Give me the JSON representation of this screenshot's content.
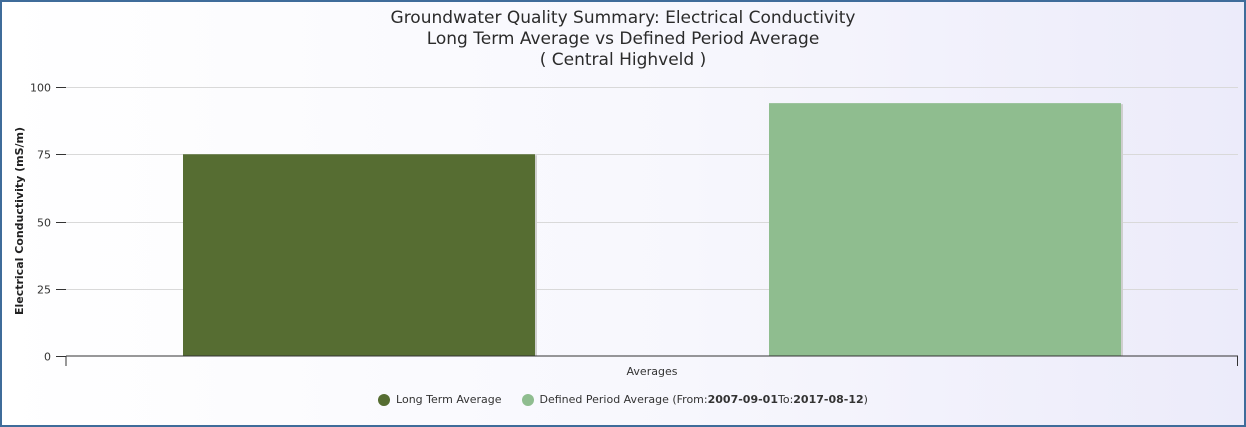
{
  "chart_data": {
    "type": "bar",
    "title": "Groundwater Quality Summary: Electrical Conductivity",
    "subtitle": "Long Term Average vs Defined Period Average",
    "region": "( Central Highveld )",
    "xlabel": "Averages",
    "ylabel": "Electrical Conductivity (mS/m)",
    "ylim": [
      0,
      100
    ],
    "yticks": [
      0,
      25,
      50,
      75,
      100
    ],
    "grid": true,
    "legend_position": "bottom",
    "series": [
      {
        "name": "Long Term Average",
        "value": 75,
        "color": "#566d32"
      },
      {
        "name": "Defined Period Average",
        "value": 94,
        "color": "#8fbd8f"
      }
    ]
  },
  "legend": {
    "long_term": "Long Term Average",
    "defined_prefix": "Defined Period Average (From: ",
    "from_date": "2007-09-01",
    "to_label": " To:",
    "to_date": "2017-08-12",
    "close": ")"
  }
}
